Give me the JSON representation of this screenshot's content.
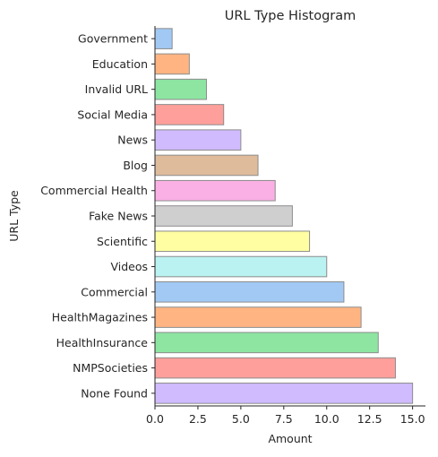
{
  "chart_data": {
    "type": "bar",
    "orientation": "horizontal",
    "title": "URL Type Histogram",
    "xlabel": "Amount",
    "ylabel": "URL Type",
    "xlim": [
      0,
      15.75
    ],
    "xticks": [
      "0.0",
      "2.5",
      "5.0",
      "7.5",
      "10.0",
      "12.5",
      "15.0"
    ],
    "categories": [
      "Government",
      "Education",
      "Invalid URL",
      "Social Media",
      "News",
      "Blog",
      "Commercial Health",
      "Fake News",
      "Scientific",
      "Videos",
      "Commercial",
      "HealthMagazines",
      "HealthInsurance",
      "NMPSocieties",
      "None Found"
    ],
    "values": [
      1,
      2,
      3,
      4,
      5,
      6,
      7,
      8,
      9,
      10,
      11,
      12,
      13,
      14,
      15
    ],
    "colors": [
      "#a1c9f4",
      "#ffb482",
      "#8de5a1",
      "#ff9f9b",
      "#d0bbff",
      "#debb9b",
      "#fab0e4",
      "#cfcfcf",
      "#fffea3",
      "#b9f2f0",
      "#a1c9f4",
      "#ffb482",
      "#8de5a1",
      "#ff9f9b",
      "#d0bbff"
    ],
    "grid": false,
    "legend": "none"
  }
}
